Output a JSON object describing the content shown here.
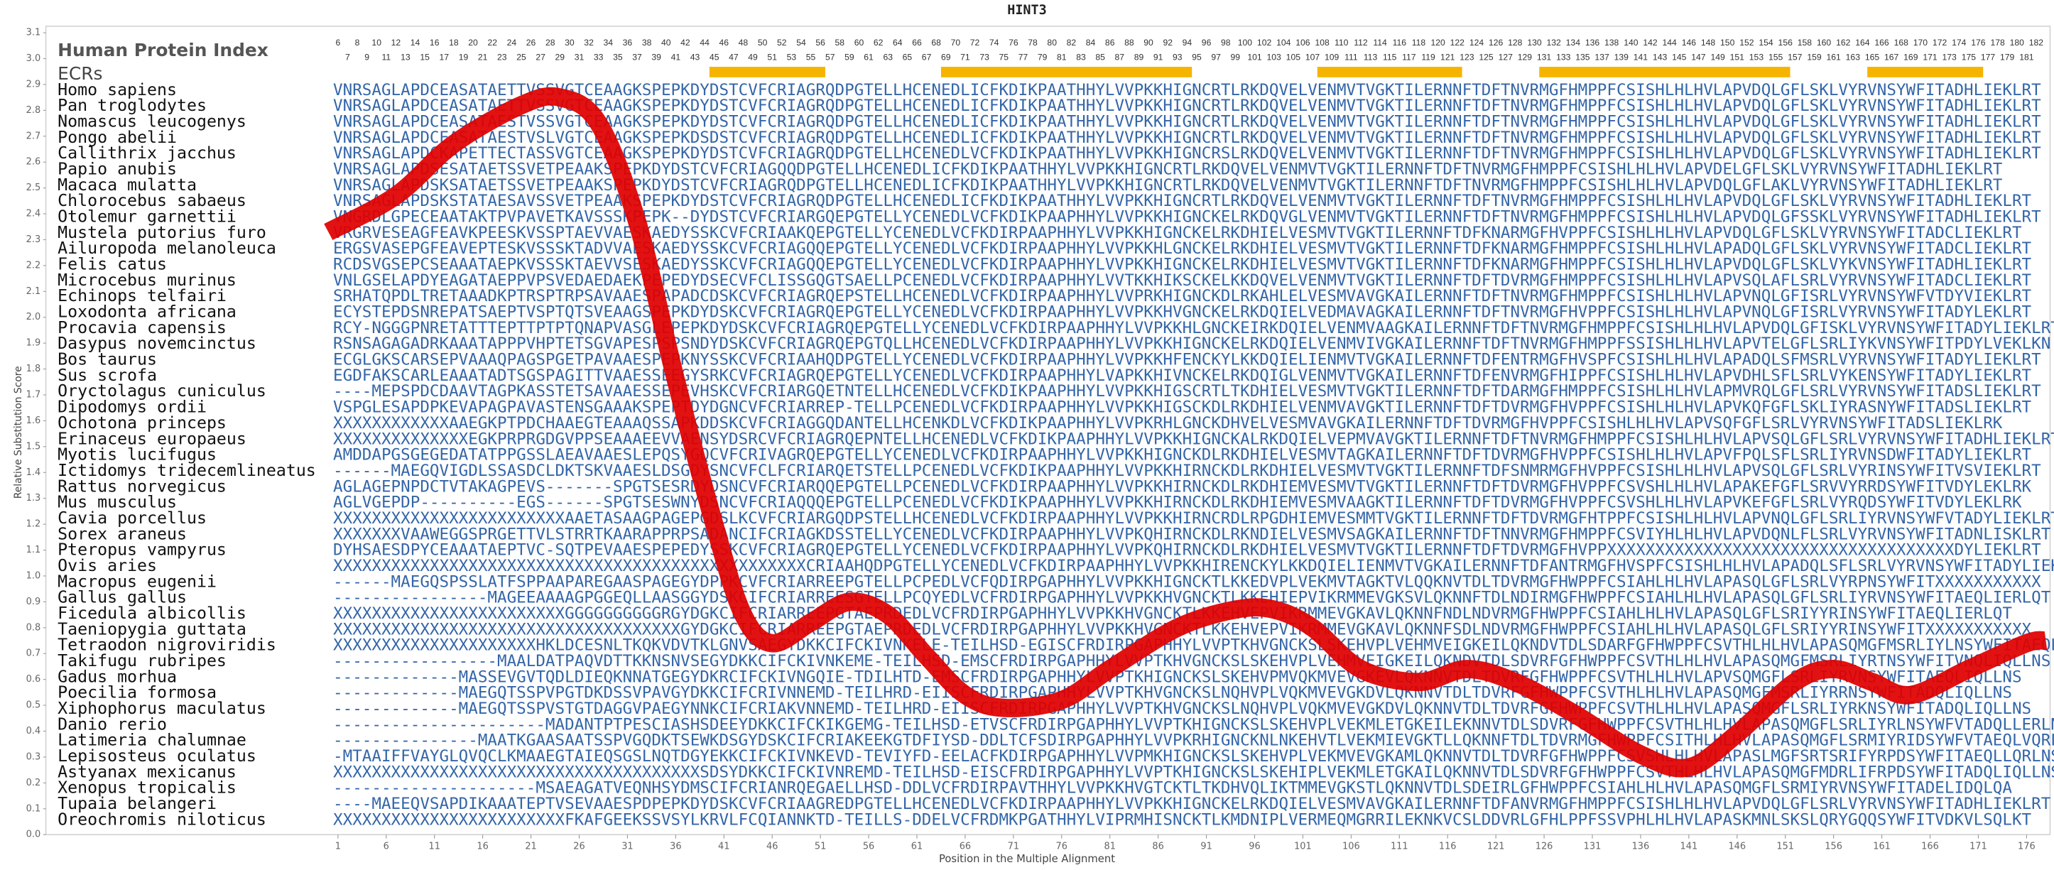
{
  "chart_data": {
    "type": "line",
    "title": "HINT3",
    "protein_index_label": "Human Protein Index",
    "ecr_label": "ECRs",
    "ylabel": "Relative Substitution Score",
    "xlabel": "Position in the Multiple Alignment",
    "ylim": [
      0,
      3.1
    ],
    "yticks": [
      {
        "value": 0,
        "label": "0.0"
      },
      0.1,
      0.2,
      0.3,
      0.4,
      0.5,
      0.6,
      0.7,
      0.8,
      0.9,
      {
        "value": 1,
        "label": "1.0"
      },
      1.1,
      1.2,
      1.3,
      1.4,
      1.5,
      1.6,
      1.7,
      1.8,
      1.9,
      {
        "value": 2,
        "label": "2.0"
      },
      2.1,
      2.2,
      2.3,
      2.4,
      2.5,
      2.6,
      2.7,
      2.8,
      2.9,
      {
        "value": 3,
        "label": "3.0"
      },
      3.1
    ],
    "xlim": [
      1,
      177
    ],
    "xticks": [
      1,
      6,
      11,
      16,
      21,
      26,
      31,
      36,
      41,
      46,
      51,
      56,
      61,
      66,
      71,
      76,
      81,
      86,
      91,
      96,
      101,
      106,
      111,
      116,
      121,
      126,
      131,
      136,
      141,
      146,
      151,
      156,
      161,
      166,
      171,
      176
    ],
    "protein_index": [
      6,
      7,
      8,
      9,
      10,
      11,
      12,
      13,
      14,
      15,
      16,
      17,
      18,
      19,
      20,
      21,
      22,
      23,
      24,
      25,
      26,
      27,
      28,
      29,
      30,
      31,
      32,
      33,
      34,
      35,
      36,
      37,
      38,
      39,
      40,
      41,
      42,
      43,
      44,
      45,
      46,
      47,
      48,
      49,
      50,
      51,
      52,
      53,
      54,
      55,
      56,
      57,
      58,
      59,
      60,
      61,
      62,
      63,
      64,
      65,
      66,
      67,
      68,
      69,
      70,
      71,
      72,
      73,
      74,
      75,
      76,
      77,
      78,
      79,
      80,
      81,
      82,
      83,
      84,
      85,
      86,
      87,
      88,
      89,
      90,
      91,
      92,
      93,
      94,
      95,
      96,
      97,
      98,
      99,
      100,
      101,
      102,
      103,
      104,
      105,
      106,
      107,
      108,
      109,
      110,
      111,
      112,
      113,
      114,
      115,
      116,
      117,
      118,
      119,
      120,
      121,
      122,
      123,
      124,
      125,
      126,
      127,
      128,
      129,
      130,
      131,
      132,
      133,
      134,
      135,
      136,
      137,
      138,
      139,
      140,
      141,
      142,
      143,
      144,
      145,
      146,
      147,
      148,
      149,
      150,
      151,
      152,
      153,
      154,
      155,
      156,
      157,
      158,
      159,
      160,
      161,
      162,
      163,
      164,
      165,
      166,
      167,
      168,
      169,
      170,
      171,
      172,
      173,
      174,
      175,
      176,
      177,
      178,
      179,
      180,
      181,
      182
    ],
    "ecrs": [
      [
        40,
        51
      ],
      [
        64,
        89
      ],
      [
        103,
        117
      ],
      [
        126,
        151
      ],
      [
        160,
        171
      ]
    ],
    "ecr_color": "#f5b400",
    "species": [
      {
        "name": "Homo sapiens",
        "sequence": "VNRSAGLAPDCEASATAETTVSSVGTCEAAGKSPEPKDYDSTCVFCRIAGRQDPGTELLHCENEDLICFKDIKPAATHHYLVVPKKHIGNCRTLRKDQVELVENMVTVGKTILERNNFTDFTNVRMGFHMPPFCSISHLHLHVLAPVDQLGFLSKLVYRVNSYWFITADHLIEKLRT"
      },
      {
        "name": "Pan troglodytes",
        "sequence": "VNRSAGLAPDCEASATAETTVSSVGTCEAAGKSPEPKDYDSTCVFCRIAGRQDPGTELLHCENEDLICFKDIKPAATHHYLVVPKKHIGNCRTLRKDQVELVENMVTVGKTILERNNFTDFTNVRMGFHMPPFCSISHLHLHVLAPVDQLGFLSKLVYRVNSYWFITADHLIEKLRT"
      },
      {
        "name": "Nomascus leucogenys",
        "sequence": "VNRSAGLAPDCEASATAESTVSSVGTCEAAGKSPEPKDYDSTCVFCRIAGRQDPGTELLHCENEDLICFKDIKPAATHHYLVVPKKHIGNCRTLRKDQVELVENMVTVGKTILERNNFTDFTNVRMGFHMPPFCSISHLHLHVLAPVDQLGFLSKLVYRVNSYWFITADHLIEKLRT"
      },
      {
        "name": "Pongo abelii",
        "sequence": "VNRSAGLAPDCEASATAESTVSLVGTCEAAGKSPEPKDSDSTCVFCRIAGRQDPGTELLHCENEDLICFKDIKPAATHHYLVVPKKHIGNCRTLRKDQVELVENMVTVGKTILERNNFTDFTNVRMGFHMPPFCSISHLHLHVLAPVDQLGFLSKLVYRVNSYWFITADHLIEKLRT"
      },
      {
        "name": "Callithrix jacchus",
        "sequence": "VNRSAGLAPDCKAPETTECTASSVGTCEAAGKSPEPKDYDSTCVFCRIAGRQDPGTELLHCENEDLVCFKDIKPAATHHYLVVPKKHIGNCRSLRKDQVELVENMVTVGKTILERNNFTDFTNVRMGFHMPPFCSISHLHLHVLAPVDQLGFLSKLVYRVNSYWFITADHLIEKLRT"
      },
      {
        "name": "Papio anubis",
        "sequence": "VNRSAGLAPDSESATAETSSVETPEAAKSPEPKDYDSTCVFCRIAGQQDPGTELLHCENEDLICFKDIKPAATHHYLVVPKKHIGNCRTLRKDQVELVENMVTVGKTILERNNFTDFTNVRMGFHMPPFCSISHLHLHVLAPVDELGFLSKLVYRVNSYWFITADHLIEKLRT"
      },
      {
        "name": "Macaca mulatta",
        "sequence": "VNRSAGLAPDSKSATAETSSVETPEAAKSPEPKDYDSTCVFCRIAGRQDPGTELLHCENEDLICFKDIKPAATHHYLVVPKKHIGNCRTLRKDQVELVENMVTVGKTILERNNFTDFTNVRMGFHMPPFCSISHLHLHVLAPVDQLGFLAKLVYRVNSYWFITADHLIEKLRT"
      },
      {
        "name": "Chlorocebus sabaeus",
        "sequence": "VNRSAGLAPDSKSTATAESAVSSVETPEAAKSPEPKDYDSTCVFCRIAGRQDPGTELLHCENEDLICFKDIKPAATHHYLVVPKKHIGNCRTLRKDQVELVENMVTVGKTILERNNFTDFTNVRMGFHMPPFCSISHLHLHVLAPVDQLGFLSKLVYRVNSYWFITADHLIEKLRT"
      },
      {
        "name": "Otolemur garnettii",
        "sequence": "VNGRDLGPECEAATAKTPVPAVETKAVSSSKPEPK--DYDSTCVFCRIARGQEPGTELLYCENEDLVCFKDIKPAAPHHYLVVPKKHIGNCKELRKDQVGLVENMVTVGKTILERNNFTDFTNVRMGFHMPPFCSISHLHLHVLAPVDQLGFSSKLVYRVNSYWFITADHLIEKLRT"
      },
      {
        "name": "Mustela putorius furo",
        "sequence": "VRGRVESEAGFEAVKPEESKVSSPTAEVVAESKAEDYSSKCVFCRIAAKQEPGTELLYCENEDLVCFKDIRPAAPHHYLVVPKKHIGNCKELRKDHIELVESMVTVGKTILERNNFTDFKNARMGFHVPPFCSISHLHLHVLAPVDQLGFLSKLVYRVNSYWFITADCLIEKLRT"
      },
      {
        "name": "Ailuropoda melanoleuca",
        "sequence": "ERGSVASEPGFEAVEPTESKVSSSKTADVVAESKAEDYSSKCVFCRIAGQQEPGTELLYCENEDLVCFKDIRPAAPHHYLVVPKKHLGNCKELRKDHIELVESMVTVGKTILERNNFTDFKNARMGFHMPPFCSISHLHLHVLAPADQLGFLSKLVYRVNSYWFITADCLIEKLRT"
      },
      {
        "name": "Felis catus",
        "sequence": "RCDSVGSEPCSEAAATAEPKVSSSKTAEVVSESKAEDYSSKCVFCRIAGQQEPGTELLYCENEDLVCFKDIRPAAPHHYLVVPKKHIGNCKELRKDHIELVESMVTVGKTILERNNFTDFKNARMGFHMPPFCSISHLHLHVLAPVDQLGFLSKLVYKVNSYWFITADHLIEKLRT"
      },
      {
        "name": "Microcebus murinus",
        "sequence": "VNLGSELAPDYEAGATAEPPVPSVEDAEDAEKPEPEDYDSECVFCLISSGQGTSAELLPCENEDLVCFKDIRPAAPHHYLVVTKKHIKSCKELKKDQVELVENMVTVGKTILERNNFTDFTDVRMGFHMPPFCSISHLHLHVLAPVSQLAFLSRLVYRVNSYWFITADCLIEKLRT"
      },
      {
        "name": "Echinops telfairi",
        "sequence": "SRHATQPDLTRETAAADKPTRSPTRPSAVAAESPAPADCDSKCVFCRIAGRQEPSTELLHCENEDLVCFKDIRPAAPHHYLVVPRKHIGNCKDLRKAHLELVESMVAVGKAILERNNFTDFTNVRMGFHMPPFCSISHLHLHVLAPVNQLGFISRLVYRVNSYWFVTDYVIEKLRT"
      },
      {
        "name": "Loxodonta africana",
        "sequence": "ECYSTEPDSNREPATSAEPTVSPTQTSVEAAGSPEPKDYDSKCVFCRIAGRQEPGTELLYCENEDLVCFKDIRPAAPHHYLVVPKKHVGNCKELRKDQIELVEDMAVAGKAILERNNFTDFTNVRMGFHVPPFCSISHLHLHVLAPVNQLGFISRLVYRVNSYWFITADYLEKLRT"
      },
      {
        "name": "Procavia capensis",
        "sequence": "RCY-NGGGPNRETATTTEPTTPTPTQNAPVASGLEPEPKDYDSKCVFCRIAGRQEPGTELLYCENEDLVCFKDIRPAAPHHYLVVPKKHLGNCKEIRKDQIELVENMVAAGKAILERNNFTDFTNVRMGFHMPPFCSISHLHLHVLAPVDQLGFISKLVYRVNSYWFITADYLIEKLRT"
      },
      {
        "name": "Dasypus novemcinctus",
        "sequence": "RSNSAGAGADRKAAATAPPPVHPTETSGVAPESPSPSNDYDSKCVFCRIAGRQEPGTQLLHCENEDLVCFKDIRPAAPHHYLVVPKKHIGNCKELRKDQIELVENMVIVGKAILERNNFTDFTNVRMGFHMPPFSSISHLHLHVLAPVTELGFLSRLIYKVNSYWFITPDYLVEKLKN"
      },
      {
        "name": "Bos taurus",
        "sequence": "ECGLGKSCARSEPVAAAQPAGSPGETPAVAAESPEPKNYSSKCVFCRIAAHQDPGTELLYCENEDLVCFKDIRPAAPHHYLVVPKKHFENCKYLKKDQIELIENMVTVGKAILERNNFTDFENTRMGFHVSPFCSISHLHLHVLAPADQLSFMSRLVYRVNSYWFITADYLIEKLRT"
      },
      {
        "name": "Sus scrofa",
        "sequence": "EGDFAKSCARLEAAATADTSGSPAGITTVAAESSEEGYSRKCVFCRIAGRQEPGTELLYCENEDLVCFKDIRPAAPHHYLVAPKKHIVNCKELRKDQIGLVENMVTVGKAILERNNFTDFENVRMGFHIPPFCSISHLHLHVLAPVDHLSFLSRLVYKENSYWFITADYLIEKLRT"
      },
      {
        "name": "Oryctolagus cuniculus",
        "sequence": "----MEPSPDCDAAVTAGPKASSTETSAVAAESSEPEVHSKCVFCRIARGQETNTELLHCENEDLVCFKDIKPAAPHHYLVVPKKHIGSCRTLTKDHIELVESMVTVGKTILERNNFTDFTDARMGFHMPPFCSISHLHLHVLAPMVRQLGFLSRLVYRVNSYWFITADSLIEKLRT"
      },
      {
        "name": "Dipodomys ordii",
        "sequence": "VSPGLESAPDPKEVAPAGPAVASTENSGAAAKSPEPTDYDGNCVFCRIARREP-TELLPCENEDLVCFKDIRPAAPHHYLVVPKKHIGSCKDLRKDHIELVENMVAVGKTILERNNFTDFTDVRMGFHVPPFCSISHLHLHVLAPVKQFGFLSKLIYRASNYWFITADSLIEKLRT"
      },
      {
        "name": "Ochotona princeps",
        "sequence": "XXXXXXXXXXXXAAEGKPTPDCHAAEGTEAAAQSSAPKDDSKCVFCRIAGGQDANTELLHCENKDLVCFKDIKPAAPHHYLVVPKRHLGNCKDHVELVESMVAVGKAILERNNFTDFTDVRMGFHVPPFCSISHLHLHVLAPVSQFGFLSRLVYRVNSYWFITADSLIEKLRK"
      },
      {
        "name": "Erinaceus europaeus",
        "sequence": "XXXXXXXXXXXXXXEGKPRPRGDGVPPSEAAAEEVVAENSYDSRCVFCRIAGRQEPNTELLHCENEDLVCFKDIKPAAPHHYLVVPKKHIGNCKALRKDQIELVEPMVAVGKTILERNNFTDFTNVRMGFHMPPFCSISHLHLHVLAPVSQLGFLSRLVYRVNSYWFITADHLIEKLRT"
      },
      {
        "name": "Myotis lucifugus",
        "sequence": "AMDDAPGSGEGEDATATPPGSSLAEAVAAESLEPQSYGQCVFCRIVAGRQEPGTELLYCENEDLVCFKDIRPAAPHHYLVVPKKHIGNCKDLRKDHIELVESMVTAGKAILERNNFTDFTDVRMGFHVPPFCSISHLHLHVLAPVFPQLSFLSRLIYRVNSDWFITADYLIEKLRT"
      },
      {
        "name": "Ictidomys tridecemlineatus",
        "sequence": "------MAEGQVIGDLSSASDCLDKTSKVAAESLDSGDYSNCVFCLFCRIARQETSTELLPCENEDLVCFKDIKPAAPHHYLVVPKKHIRNCKDLRKDHIELVESMVTVGKTILERNNFTDFSNMRMGFHVPPFCSISHLHLHVLAPVSQLGFLSRLVYRINSYWFITVSVIEKLRT"
      },
      {
        "name": "Rattus norvegicus",
        "sequence": "AGLAGEPNPDCTVTAKAGPEVS-------SPGTSESRDYDSNCVFCRIARQQEPGTELLPCENEDLVCFKDIRPAAPHHYLVVPKKHIRNCKDLRKDHIEMVESMVTVGKTILERNNFTDFTDVRMGFHVPPFCSVSHLHLHVLAPAKEFGFLSRVVYRRDSYWFITVDYLEKLRK"
      },
      {
        "name": "Mus musculus",
        "sequence": "AGLVGEPDP----------EGS------SPGTSESWNYDSNCVFCRIAQQQEPGTELLPCENEDLVCFKDIKPAAPHHYLVVPKKHIRNCKDLRKDHIEMVESMVAAGKTILERNNFTDFTDVRMGFHVPPFCSVSHLHLHVLAPVKEFGFLSRLVYRQDSYWFITVDYLEKLRK"
      },
      {
        "name": "Cavia porcellus",
        "sequence": "XXXXXXXXXXXXXXXXXXXXXXXXAAETASAAGPAGEPGDSLKCVFCRIARGQDPSTELLHCENEDLVCFKDIRPAAPHHYLVVPKKHIRNCRDLRPGDHIEMVESMMTVGKTILERNNFTDFTDVRMGFHTPPFCSISHLHLHVLAPVNQLGFLSRLIYRVNSYWFVTADYLIEKLRT"
      },
      {
        "name": "Sorex araneus",
        "sequence": "XXXXXXXVAAWEGGSPRGETTVLSTRRTKAARAPPRPSADANCIFCRIAGKDSSTELLYCENEDLVCFKDIRPAAPHHYLVVPKQHIRNCKDLRKNDIELVESMVSAGKAILERNNFTDFTNNVRMGFHMPPFCSVIYHLHLHVLAPVDQNLFLSRLVYRVNSYWFITADNLISKLRT"
      },
      {
        "name": "Pteropus vampyrus",
        "sequence": "DYHSAESDPYCEAAATAEPTVC-SQTPEVAAESPEPEDYSSKCVFCRIAGRQEPGTELLYCENEDLVCFKDIRPAAPHHYLVVPKQHIRNCKDLRKDHIELVESMVTVGKTILERNNFTDFTDVRMGFHVPPXXXXXXXXXXXXXXXXXXXXXXXXXXXXXXXXXXXXDYLIEKLRT"
      },
      {
        "name": "Ovis aries",
        "sequence": "XXXXXXXXXXXXXXXXXXXXXXXXXXXXXXXXXXXXXXXXXXXXXXXXXCRIAAHQDPGTELLYCENEDLVCFKDIRPAAPHHYLVVPKKHIRENCKYLKKDQIELIENMVTVGKAILERNNFTDFANTRMGFHVSPFCSISHLHLHVLAPADQLSFLSRLVYRVNSYWFITADYLIEKLRT"
      },
      {
        "name": "Macropus eugenii",
        "sequence": "------MAEGQSPSSLATFSPPAAPAREGAASPAGEGYDPPKCVFCRIARREEPGTELLPCPEDLVCFQDIRPGAPHHYLVVPKKHIGNCKTLKKEDVPLVEKMVTAGKTVLQQKNVTDLTDVRMGFHWPPFCSIAHLHLHVLAPASQLGFLSRLVYRPNSYWFITXXXXXXXXXXX"
      },
      {
        "name": "Gallus gallus",
        "sequence": "----------------MAGEEAAAAGPGGEQLLAASGGYDSKCIFCRIARREESGTELLPCQYEDLVCFRDIRPGAPHHYLVVPKKHVGNCKTLKKEHIEPVIKRMMEVGKSVLQKNNFTDLNDIRMGFHWPPFCSIAHLHLHVLAPASQLGFLSRLIYRVNSYWFITAEQLIERLQT"
      },
      {
        "name": "Ficedula albicollis",
        "sequence": "XXXXXXXXXXXXXXXXXXXXXXXXGGGGGGGGGGRGYDGKCIFCRIARREEPGTAEPRDEDLVCFRDIRPGAPHHYLVVPKKHVGNCKTLKKEHVEPVIKRMMEVGKAVLQKNNFNDLNDVRMGFHWPPFCSIAHLHLHVLAPASQLGFLSRIYYRINSYWFITAEQLIERLQT"
      },
      {
        "name": "Taeniopygia guttata",
        "sequence": "XXXXXXXXXXXXXXXXXXXXXXXXXXXXXXXXXXXXGYDGKCIFCRIARREEPGTAEPRDEDLVCFRDIRPGAPHHYLVVPKKHVGNCKTLKKEHVEPVIKRMMEVGKAVLQKNNFSDLNDVRMGFHWPPFCSIAHLHLHVLAPASQLGFLSRIYYRINSYWFITXXXXXXXXXXX"
      },
      {
        "name": "Tetraodon nigroviridis",
        "sequence": "XXXXXXXXXXXXXXXXXXXXXHKLDCESNLTKQKVDVTKLGNVSAEGYDKKCIFCKIVNKELE-TEILHSD-EGISCFRDIRPGAPHHYLVVPTKHVGNCKSLSKEHVPLVEHMVEIGKEILQKNDVTDLSDARFGFHWPPFCSVTHLHLHVLAPASQMGFMSRLIYLNSYWFITAEQLIESLT"
      },
      {
        "name": "Takifugu rubripes",
        "sequence": "-----------------MAALDATPAQVDTTKKNSNVSEGYDKKCIFCKIVNKEME-TEILHSD-EMSCFRDIRPGAPHHYLVVPTKHVGNCKSLSKEHVPLVEHMVEIGKEILQKNDVTDLSDVRFGFHWPPFCSVTHLHLHVLAPASQMGFMSRLIYRTNSYWFITVNQLIQLLNS"
      },
      {
        "name": "Gadus morhua",
        "sequence": "-------------MASSEVGVTQDLDIEQKNNATGEGYDKRCIFCKIVNGQIE-TDILHTD-EMSCFRDIRPGAPHHYLVVPTKHIGNCKSLSKEHVPMVQKMVEVGKEVLQKNNVTDLTDVRFGFHWPPFCSVTHLHLHVLAPVSQMGFLSRLIYRVNSYWFITAEQLIQLLNS"
      },
      {
        "name": "Poecilia formosa",
        "sequence": "-------------MAEGQTSSPVPGTDKDSSVPAVGYDKKCIFCRIVNNEMD-TEILHRD-EIISCFRDIRPGAPHHYLVVPTKHVGNCKSLNQHVPLVQKMVEVGKDVLQKNNVTDLTDVRFGFHWPPFCSVTHLHLHVLAPASQMGFMSRLIYRRNSYWFITADQLIQLLNS"
      },
      {
        "name": "Xiphophorus maculatus",
        "sequence": "-------------MAEGQTSSPVSTGTDAGGVPAEGYNNKCIFCRIAKVNNEMD-TEILHRD-EIISCFRDIRPGAPHHYLVVPTKHVGNCKSLNQHVPLVQKMVEVGKDVLQKNNVTDLTDVRFGFHWPPFCSVTHLHLHVLAPASQMGFLSRLIYRKNSYWFITADQLIQLLNS"
      },
      {
        "name": "Danio rerio",
        "sequence": "----------------------MADANTPTPESCIASHSDEEYDKKCIFCKIKGEMG-TEILHSD-ETVSCFRDIRPGAPHHYLVVPTKHIGNCKSLSKEHVPLVEKMLETGKEILEKNNVTDLSDVRFGFHWPPFCSVTHLHLHVLAPASQMGFLSRLIYRLNSYWFVTADQLLERLNS"
      },
      {
        "name": "Latimeria chalumnae",
        "sequence": "---------------MAATKGAASAATSSPVGQDKTSEWKDSGYDSKCIFCRIAKEEKGTDFIYSD-DDLTCFSDIRPGAPHHYLVVPKRHIGNCKNLNKEHVTLVEKMIEVGKTLLQKNNFTDLTDVRMGFHWPPFCSITHLHLHVLAPASQMGFLSRMIYRIDSYWFVTAEQLVQRLKT"
      },
      {
        "name": "Lepisosteus oculatus",
        "sequence": "-MTAAIFFVAYGLQVQCLKMAAEGTAIEQSGSLNQTDGYEKKCIFCKIVNKEVD-TEVIYFD-EELACFKDIRPGAPHHYLVVPMKHIGNCKSLSKEHVPLVEKMVEVGKAMLQKNNVTDLTDVRFGFHWPPFCSVSHLHLHVLAPASLMGFSRTSRIFYRPDSYWFITAEQLLQRLNS"
      },
      {
        "name": "Astyanax mexicanus",
        "sequence": "XXXXXXXXXXXXXXXXXXXXXXXXXXXXXXXXXXXXXXSDSYDKKCIFCKIVNREMD-TEILHSD-EISCFRDIRPGAPHHYLVVPTKHIGNCKSLSKEHIPLVEKMLETGKAILQKNNVTDLSDVRFGFHWPPFCSVTHLHLHVLAPASQMGFMDRLIFRPDSYWFITADQLIQLLNS"
      },
      {
        "name": "Xenopus tropicalis",
        "sequence": "---------------------MSAEAGATVEQNHSYDMSCIFCRIANRQEGAELLHSD-DDLVCFRDIRPAVTHHYLVVPKKHVGTCKTLTKDHVQLIKTMMEVGKSTLQKNNVTDLSDEIRLGFHWPPFCSIAHLHLHVLAPASQMGFLSRMIYRVNSYWFITADELIDQLQA"
      },
      {
        "name": "Tupaia belangeri",
        "sequence": "----MAEEQVSAPDIKAAATEPTVSEVAAESPDPEPKDYDSKCVFCRIAAGREDPGTELLHCENEDLVCFKDIRPAAPHHYLVVPKKHIGNCKELRKDQIELVESMVAVGKAILERNNFTDFANVRMGFHMPPFCSISHLHLHVLAPVDQLGFLSRLVYRVNSYWFITADHLIEKLRT"
      },
      {
        "name": "Oreochromis niloticus",
        "sequence": "XXXXXXXXXXXXXXXXXXXXXXXXFKAFGEEKSSVSYLKRVLFCQIANNKTD-TEILLS-DDELVCFRDMKPGATHHYLVIPRMHISNCKTLKMDNIPLVERMEQMGRRILEKNKVCSLDDVRLGFHLPPFSSVPHLHLHVLAPASKMNLSKSLQRYGQQSYWFITVDKVLSQLKT"
      }
    ],
    "x": [
      0,
      7,
      13,
      20,
      24,
      28,
      32,
      36,
      40,
      43,
      46,
      50,
      54,
      58,
      62,
      66,
      70,
      76,
      81,
      88,
      94,
      98,
      102,
      107,
      113,
      118,
      123,
      129,
      136,
      141,
      146,
      152,
      156,
      160,
      164,
      170,
      176,
      178
    ],
    "values": [
      2.33,
      2.47,
      2.67,
      2.82,
      2.85,
      2.75,
      2.37,
      1.76,
      1.2,
      0.85,
      0.74,
      0.82,
      0.9,
      0.85,
      0.69,
      0.54,
      0.49,
      0.52,
      0.64,
      0.8,
      0.87,
      0.87,
      0.8,
      0.64,
      0.59,
      0.64,
      0.59,
      0.47,
      0.31,
      0.26,
      0.39,
      0.59,
      0.64,
      0.59,
      0.54,
      0.64,
      0.74,
      0.75
    ],
    "color": "#e00000"
  }
}
